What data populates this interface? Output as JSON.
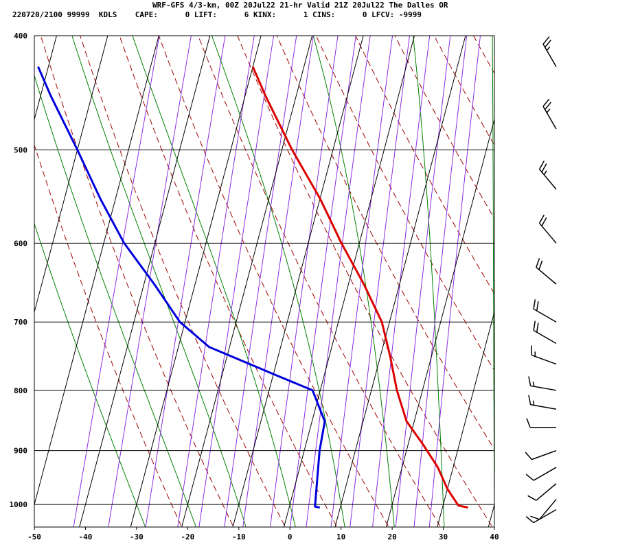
{
  "header": {
    "line1": "WRF-GFS 4/3-km, 00Z 20Jul22 21-hr Valid 21Z 20Jul22 The Dalles OR",
    "line2": "220720/2100 99999  KDLS    CAPE:      0 LIFT:      6 KINX:      1 CINS:      0 LFCV: -9999"
  },
  "chart_data": {
    "type": "line",
    "title": "",
    "xlabel": "",
    "ylabel": "",
    "x_axis": {
      "min": -50,
      "max": 40,
      "ticks": [
        -50,
        -40,
        -30,
        -20,
        -10,
        0,
        10,
        20,
        30,
        40
      ]
    },
    "y_axis": {
      "scale": "log",
      "min": 1045,
      "max": 400,
      "ticks": [
        400,
        500,
        600,
        700,
        800,
        900,
        1000
      ]
    },
    "grid": true,
    "skew": "skew-T log-P",
    "series": [
      {
        "color": "#dd0000",
        "points": [
          {
            "p": 1006,
            "t": 35
          },
          {
            "p": 1002,
            "t": 33
          },
          {
            "p": 970,
            "t": 30
          },
          {
            "p": 930,
            "t": 27
          },
          {
            "p": 890,
            "t": 23
          },
          {
            "p": 850,
            "t": 18.5
          },
          {
            "p": 800,
            "t": 15
          },
          {
            "p": 750,
            "t": 12
          },
          {
            "p": 700,
            "t": 8.5
          },
          {
            "p": 650,
            "t": 3
          },
          {
            "p": 600,
            "t": -3.5
          },
          {
            "p": 550,
            "t": -10
          },
          {
            "p": 500,
            "t": -18
          },
          {
            "p": 450,
            "t": -26
          },
          {
            "p": 425,
            "t": -30
          }
        ]
      },
      {
        "color": "#0000dd",
        "points": [
          {
            "p": 1006,
            "t": 6
          },
          {
            "p": 1004,
            "t": 5
          },
          {
            "p": 950,
            "t": 4
          },
          {
            "p": 900,
            "t": 3
          },
          {
            "p": 850,
            "t": 2.5
          },
          {
            "p": 800,
            "t": -1.5
          },
          {
            "p": 775,
            "t": -10
          },
          {
            "p": 735,
            "t": -24
          },
          {
            "p": 700,
            "t": -31
          },
          {
            "p": 650,
            "t": -38
          },
          {
            "p": 600,
            "t": -46
          },
          {
            "p": 550,
            "t": -53
          },
          {
            "p": 500,
            "t": -60
          },
          {
            "p": 450,
            "t": -68
          },
          {
            "p": 425,
            "t": -72
          }
        ]
      }
    ],
    "background_lines": {
      "isotherm_color": "#000000",
      "dry_adiabat_color": "#a00000",
      "moist_adiabat_color": "#008000",
      "mixing_ratio_color": "#8a2be2"
    },
    "wind_barbs": [
      {
        "p": 425,
        "dir": 330,
        "speed_kt": 25
      },
      {
        "p": 480,
        "dir": 330,
        "speed_kt": 25
      },
      {
        "p": 540,
        "dir": 320,
        "speed_kt": 25
      },
      {
        "p": 600,
        "dir": 320,
        "speed_kt": 20
      },
      {
        "p": 650,
        "dir": 310,
        "speed_kt": 20
      },
      {
        "p": 700,
        "dir": 300,
        "speed_kt": 20
      },
      {
        "p": 730,
        "dir": 300,
        "speed_kt": 20
      },
      {
        "p": 760,
        "dir": 290,
        "speed_kt": 15
      },
      {
        "p": 800,
        "dir": 280,
        "speed_kt": 15
      },
      {
        "p": 830,
        "dir": 280,
        "speed_kt": 15
      },
      {
        "p": 860,
        "dir": 270,
        "speed_kt": 10
      },
      {
        "p": 900,
        "dir": 250,
        "speed_kt": 10
      },
      {
        "p": 930,
        "dir": 240,
        "speed_kt": 10
      },
      {
        "p": 960,
        "dir": 230,
        "speed_kt": 10
      },
      {
        "p": 990,
        "dir": 220,
        "speed_kt": 10
      },
      {
        "p": 1010,
        "dir": 240,
        "speed_kt": 10
      }
    ]
  }
}
